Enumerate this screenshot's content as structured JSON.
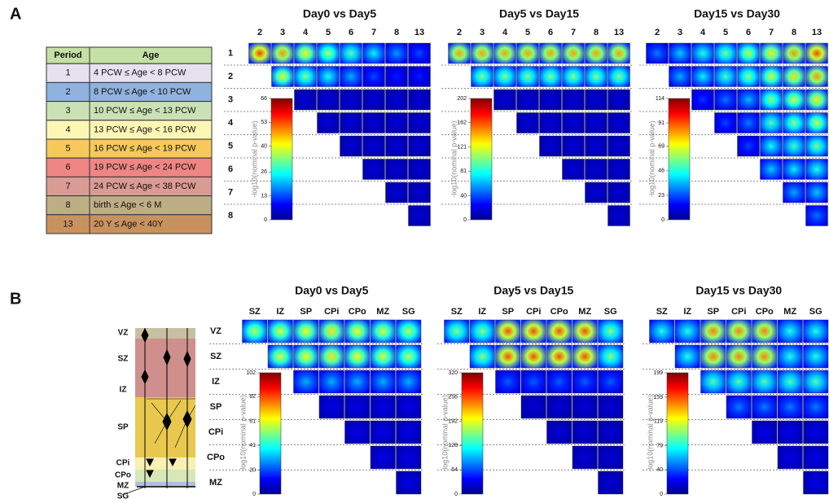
{
  "panel_a": {
    "label": "A",
    "table": {
      "header": [
        "Period",
        "Age"
      ],
      "rows": [
        [
          "1",
          "4 PCW ≤ Age < 8 PCW"
        ],
        [
          "2",
          "8 PCW ≤ Age < 10 PCW"
        ],
        [
          "3",
          "10 PCW ≤ Age < 13 PCW"
        ],
        [
          "4",
          "13 PCW ≤ Age < 16 PCW"
        ],
        [
          "5",
          "16 PCW ≤ Age < 19 PCW"
        ],
        [
          "6",
          "19 PCW ≤ Age < 24 PCW"
        ],
        [
          "7",
          "24 PCW ≤ Age < 38 PCW"
        ],
        [
          "8",
          "birth ≤ Age < 6 M"
        ],
        [
          "13",
          "20 Y ≤ Age < 40Y"
        ]
      ],
      "header_color": "#c5e0a5",
      "row_colors": [
        "#e6e0ef",
        "#8fb2df",
        "#c9e1b4",
        "#fdf7b5",
        "#f6c95a",
        "#ef8585",
        "#d99b93",
        "#bdae86",
        "#c8925f"
      ]
    },
    "columns": [
      "2",
      "3",
      "4",
      "5",
      "6",
      "7",
      "8",
      "13"
    ],
    "rows": [
      "1",
      "2",
      "3",
      "4",
      "5",
      "6",
      "7",
      "8"
    ],
    "colorbar_label": "-log10(nominal p-value)",
    "groups": [
      {
        "title": "Day0 vs Day5",
        "colorbar": {
          "ylim": [
            0,
            66
          ],
          "yticks": [
            0,
            13,
            26,
            40,
            53,
            66
          ]
        }
      },
      {
        "title": "Day5 vs Day15",
        "colorbar": {
          "ylim": [
            0,
            202
          ],
          "yticks": [
            0,
            40,
            81,
            121,
            162,
            202
          ]
        }
      },
      {
        "title": "Day15 vs Day30",
        "colorbar": {
          "ylim": [
            0,
            114
          ],
          "yticks": [
            0,
            23,
            46,
            69,
            91,
            114
          ]
        }
      }
    ]
  },
  "panel_b": {
    "label": "B",
    "layers": [
      "VZ",
      "SZ",
      "IZ",
      "SP",
      "CPi",
      "CPo",
      "MZ",
      "SG"
    ],
    "columns": [
      "SZ",
      "IZ",
      "SP",
      "CPi",
      "CPo",
      "MZ",
      "SG"
    ],
    "rows": [
      "VZ",
      "SZ",
      "IZ",
      "SP",
      "CPi",
      "CPo",
      "MZ"
    ],
    "colorbar_label": "-log10(nominal p-value)",
    "groups": [
      {
        "title": "Day0 vs Day5",
        "colorbar": {
          "ylim": [
            0,
            102
          ],
          "yticks": [
            0,
            20,
            41,
            61,
            82,
            102
          ]
        }
      },
      {
        "title": "Day5 vs Day15",
        "colorbar": {
          "ylim": [
            0,
            320
          ],
          "yticks": [
            0,
            64,
            128,
            192,
            256,
            320
          ]
        }
      },
      {
        "title": "Day15 vs Day30",
        "colorbar": {
          "ylim": [
            0,
            199
          ],
          "yticks": [
            0,
            40,
            79,
            119,
            159,
            199
          ]
        }
      }
    ]
  }
}
